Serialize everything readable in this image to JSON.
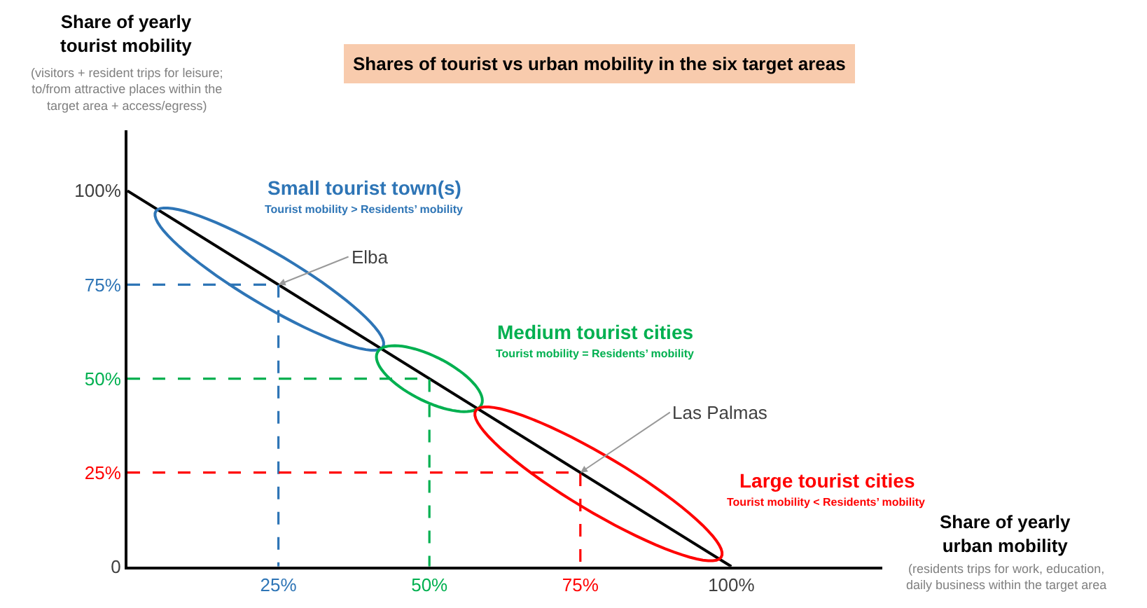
{
  "chart_data": {
    "type": "line",
    "title": "Shares of tourist vs urban mobility in the six target areas",
    "xlabel": "Share of yearly\nurban mobility",
    "ylabel": "Share of yearly\ntourist mobility",
    "xlim": [
      0,
      125
    ],
    "ylim": [
      0,
      116
    ],
    "xticks": [
      {
        "value": 25,
        "label": "25%"
      },
      {
        "value": 50,
        "label": "50%"
      },
      {
        "value": 75,
        "label": "75%"
      },
      {
        "value": 100,
        "label": "100%"
      }
    ],
    "yticks": [
      {
        "value": 0,
        "label": "0"
      },
      {
        "value": 25,
        "label": "25%"
      },
      {
        "value": 50,
        "label": "50%"
      },
      {
        "value": 75,
        "label": "75%"
      },
      {
        "value": 100,
        "label": "100%"
      }
    ],
    "marker": "none",
    "series": [
      {
        "color": "#000000",
        "x": [
          0,
          100
        ],
        "values": [
          100,
          0
        ],
        "line_style": "solid"
      },
      {
        "color": "#2e75b6",
        "x": [
          0,
          25,
          25
        ],
        "values": [
          75,
          75,
          0
        ],
        "line_style": "dashed"
      },
      {
        "color": "#00b050",
        "x": [
          0,
          50,
          50
        ],
        "values": [
          50,
          50,
          0
        ],
        "line_style": "dashed"
      },
      {
        "color": "#ff0000",
        "x": [
          0,
          75,
          75
        ],
        "values": [
          25,
          25,
          0
        ],
        "line_style": "dashed"
      }
    ],
    "annotations": [
      "(visitors + resident trips for leisure;\nto/from attractive places within the\ntarget area + access/egress)",
      "(residents trips for work, education,\ndaily business within the target area",
      "Small tourist town(s)",
      "Tourist mobility > Residents’ mobility",
      "Medium tourist cities",
      "Tourist mobility = Residents’ mobility",
      "Large tourist cities",
      "Tourist mobility < Residents’ mobility",
      {
        "text": "Elba",
        "x": 25,
        "y": 75
      },
      {
        "text": "Las Palmas",
        "x": 75,
        "y": 25
      }
    ]
  }
}
